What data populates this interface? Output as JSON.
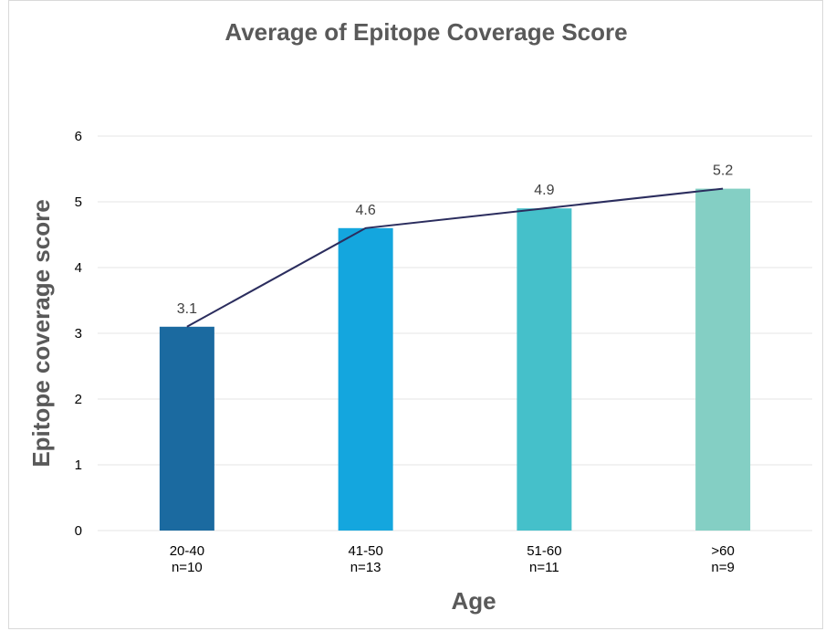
{
  "chart_data": {
    "type": "bar",
    "title": "Average of Epitope Coverage Score",
    "xlabel": "Age",
    "ylabel": "Epitope coverage score",
    "categories": [
      "20-40",
      "41-50",
      "51-60",
      ">60"
    ],
    "category_sublabels": [
      "n=10",
      "n=13",
      "n=11",
      "n=9"
    ],
    "values": [
      3.1,
      4.6,
      4.9,
      5.2
    ],
    "data_labels": [
      "3.1",
      "4.6",
      "4.9",
      "5.2"
    ],
    "bar_colors": [
      "#1b6aa0",
      "#14a6de",
      "#45c0ca",
      "#84cfc4"
    ],
    "trend_line": {
      "values": [
        3.1,
        4.6,
        4.9,
        5.2
      ],
      "color": "#2b2d5e"
    },
    "ylim": [
      0,
      6
    ],
    "yticks": [
      "0",
      "1",
      "2",
      "3",
      "4",
      "5",
      "6"
    ],
    "grid": "horizontal",
    "legend": "none"
  }
}
